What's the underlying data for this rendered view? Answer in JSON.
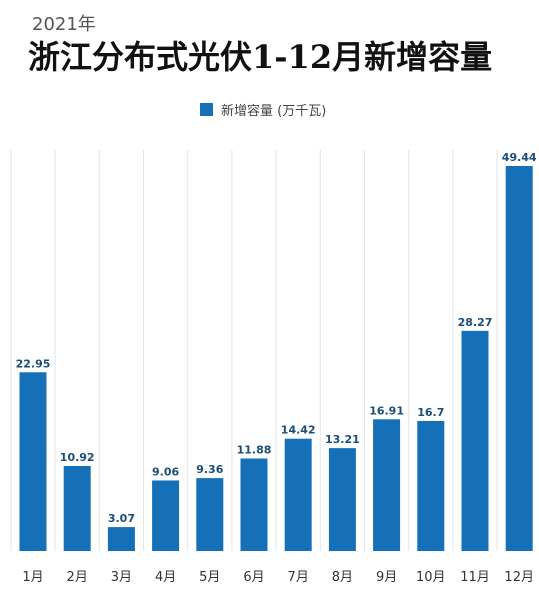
{
  "subtitle": "2021年",
  "title": "浙江分布式光伏1-12月新增容量",
  "chart_data": {
    "type": "bar",
    "title": "浙江分布式光伏1-12月新增容量",
    "subtitle": "2021年",
    "categories": [
      "1月",
      "2月",
      "3月",
      "4月",
      "5月",
      "6月",
      "7月",
      "8月",
      "9月",
      "10月",
      "11月",
      "12月"
    ],
    "series": [
      {
        "name": "新增容量 (万千瓦)",
        "values": [
          22.95,
          10.92,
          3.07,
          9.06,
          9.36,
          11.88,
          14.42,
          13.21,
          16.91,
          16.7,
          28.27,
          49.44
        ],
        "labels": [
          "22.95",
          "10.92",
          "3.07",
          "9.06",
          "9.36",
          "11.88",
          "14.42",
          "13.21",
          "16.91",
          "16.7",
          "28.27",
          "49.44"
        ]
      }
    ],
    "ylim": [
      0,
      52
    ],
    "legend": "top-center",
    "grid": false,
    "colors": {
      "bar": "#1670b8",
      "label": "#1a4f7a",
      "gridline": "#e4e4e4"
    }
  }
}
